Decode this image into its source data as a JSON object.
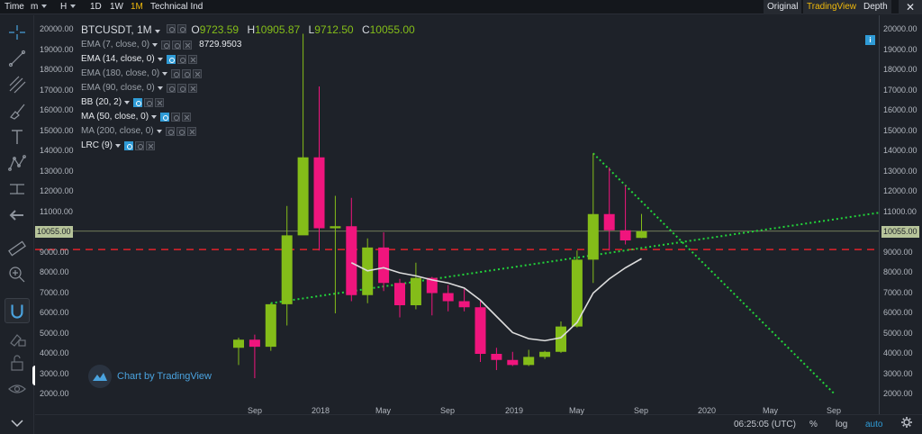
{
  "topbar": {
    "items": [
      {
        "label": "Time",
        "caret": false
      },
      {
        "label": "m",
        "caret": true
      },
      {
        "label": "H",
        "caret": true
      },
      {
        "label": "1D",
        "caret": false
      },
      {
        "label": "1W",
        "caret": false
      },
      {
        "label": "1M",
        "caret": false,
        "active": true
      },
      {
        "label": "Technical Ind",
        "caret": false
      }
    ],
    "views": [
      "Original",
      "TradingView",
      "Depth"
    ],
    "selected_view": "TradingView",
    "close_glyph": "✕"
  },
  "legend": {
    "symbol": "BTCUSDT, 1M",
    "ohlc": [
      {
        "label": "O",
        "value": "9723.59"
      },
      {
        "label": "H",
        "value": "10905.87"
      },
      {
        "label": "L",
        "value": "9712.50"
      },
      {
        "label": "C",
        "value": "10055.00"
      }
    ],
    "indicators": [
      {
        "name": "EMA (7, close, 0)",
        "visible": false,
        "value": "8729.9503"
      },
      {
        "name": "EMA (14, close, 0)",
        "visible": true,
        "value": ""
      },
      {
        "name": "EMA (180, close, 0)",
        "visible": false,
        "value": ""
      },
      {
        "name": "EMA (90, close, 0)",
        "visible": false,
        "value": ""
      },
      {
        "name": "BB (20, 2)",
        "visible": true,
        "value": ""
      },
      {
        "name": "MA (50, close, 0)",
        "visible": true,
        "value": ""
      },
      {
        "name": "MA (200, close, 0)",
        "visible": false,
        "value": ""
      },
      {
        "name": "LRC (9)",
        "visible": true,
        "value": ""
      }
    ]
  },
  "watermark": "Chart by TradingView",
  "price_axis": {
    "ticks": [
      "20000.00",
      "19000.00",
      "18000.00",
      "17000.00",
      "16000.00",
      "15000.00",
      "14000.00",
      "13000.00",
      "12000.00",
      "11000.00",
      "9000.00",
      "8000.00",
      "7000.00",
      "6000.00",
      "5000.00",
      "4000.00",
      "3000.00",
      "2000.00"
    ],
    "current_price": "10055.00"
  },
  "time_axis": {
    "ticks": [
      "Sep",
      "2018",
      "May",
      "Sep",
      "2019",
      "May",
      "Sep",
      "2020",
      "May",
      "Sep"
    ]
  },
  "bottom": {
    "clock": "06:25:05 (UTC)",
    "percent": "%",
    "log": "log",
    "auto": "auto"
  },
  "colors": {
    "up": "#84bd19",
    "down": "#f0157d",
    "ema_line": "#dcdcdc",
    "trend": "#22d43a",
    "support": "#e3232b",
    "accent": "#f0b90b"
  },
  "chart_data": {
    "type": "candlestick",
    "pair": "BTCUSDT",
    "interval": "1M",
    "candles": [
      {
        "t": "2017-08",
        "o": 4300,
        "h": 4800,
        "l": 3450,
        "c": 4700
      },
      {
        "t": "2017-09",
        "o": 4700,
        "h": 4950,
        "l": 2800,
        "c": 4350
      },
      {
        "t": "2017-10",
        "o": 4350,
        "h": 6500,
        "l": 4150,
        "c": 6450
      },
      {
        "t": "2017-11",
        "o": 6450,
        "h": 11300,
        "l": 5400,
        "c": 9850
      },
      {
        "t": "2017-12",
        "o": 9850,
        "h": 19800,
        "l": 10000,
        "c": 13700
      },
      {
        "t": "2018-01",
        "o": 13700,
        "h": 17200,
        "l": 9100,
        "c": 10200
      },
      {
        "t": "2018-02",
        "o": 10200,
        "h": 11800,
        "l": 6000,
        "c": 10300
      },
      {
        "t": "2018-03",
        "o": 10300,
        "h": 11700,
        "l": 6600,
        "c": 6900
      },
      {
        "t": "2018-04",
        "o": 6900,
        "h": 9700,
        "l": 6500,
        "c": 9250
      },
      {
        "t": "2018-05",
        "o": 9250,
        "h": 10000,
        "l": 7100,
        "c": 7500
      },
      {
        "t": "2018-06",
        "o": 7500,
        "h": 7700,
        "l": 5800,
        "c": 6400
      },
      {
        "t": "2018-07",
        "o": 6400,
        "h": 8500,
        "l": 6200,
        "c": 7750
      },
      {
        "t": "2018-08",
        "o": 7750,
        "h": 7800,
        "l": 5900,
        "c": 7000
      },
      {
        "t": "2018-09",
        "o": 7000,
        "h": 7400,
        "l": 6100,
        "c": 6600
      },
      {
        "t": "2018-10",
        "o": 6600,
        "h": 7200,
        "l": 6100,
        "c": 6300
      },
      {
        "t": "2018-11",
        "o": 6300,
        "h": 6600,
        "l": 3600,
        "c": 4000
      },
      {
        "t": "2018-12",
        "o": 4000,
        "h": 4300,
        "l": 3200,
        "c": 3700
      },
      {
        "t": "2019-01",
        "o": 3700,
        "h": 4100,
        "l": 3400,
        "c": 3450
      },
      {
        "t": "2019-02",
        "o": 3450,
        "h": 4200,
        "l": 3400,
        "c": 3850
      },
      {
        "t": "2019-03",
        "o": 3850,
        "h": 4150,
        "l": 3750,
        "c": 4100
      },
      {
        "t": "2019-04",
        "o": 4100,
        "h": 5600,
        "l": 4050,
        "c": 5350
      },
      {
        "t": "2019-05",
        "o": 5350,
        "h": 9100,
        "l": 5300,
        "c": 8650
      },
      {
        "t": "2019-06",
        "o": 8650,
        "h": 13900,
        "l": 7500,
        "c": 10900
      },
      {
        "t": "2019-07",
        "o": 10900,
        "h": 13200,
        "l": 9100,
        "c": 10100
      },
      {
        "t": "2019-08",
        "o": 10100,
        "h": 12300,
        "l": 9400,
        "c": 9600
      },
      {
        "t": "2019-09",
        "o": 9723.59,
        "h": 10905.87,
        "l": 9712.5,
        "c": 10055.0
      }
    ],
    "ema_14": [
      {
        "t": "2018-03",
        "v": 8500
      },
      {
        "t": "2018-04",
        "v": 8100
      },
      {
        "t": "2018-05",
        "v": 8250
      },
      {
        "t": "2018-06",
        "v": 8000
      },
      {
        "t": "2018-07",
        "v": 7850
      },
      {
        "t": "2018-08",
        "v": 7650
      },
      {
        "t": "2018-09",
        "v": 7500
      },
      {
        "t": "2018-10",
        "v": 7250
      },
      {
        "t": "2018-11",
        "v": 6650
      },
      {
        "t": "2018-12",
        "v": 5850
      },
      {
        "t": "2019-01",
        "v": 5050
      },
      {
        "t": "2019-02",
        "v": 4750
      },
      {
        "t": "2019-03",
        "v": 4650
      },
      {
        "t": "2019-04",
        "v": 4800
      },
      {
        "t": "2019-05",
        "v": 5550
      },
      {
        "t": "2019-06",
        "v": 7000
      },
      {
        "t": "2019-07",
        "v": 7700
      },
      {
        "t": "2019-08",
        "v": 8250
      },
      {
        "t": "2019-09",
        "v": 8700
      }
    ],
    "trend_lines": [
      {
        "from": {
          "t": "2017-10",
          "v": 6500
        },
        "to": {
          "t": "2020-12",
          "v": 11000
        }
      },
      {
        "from": {
          "t": "2019-06",
          "v": 13900
        },
        "to": {
          "t": "2020-09",
          "v": 2000
        }
      }
    ],
    "support_level": 9150,
    "ylim": [
      2000,
      20000
    ]
  }
}
